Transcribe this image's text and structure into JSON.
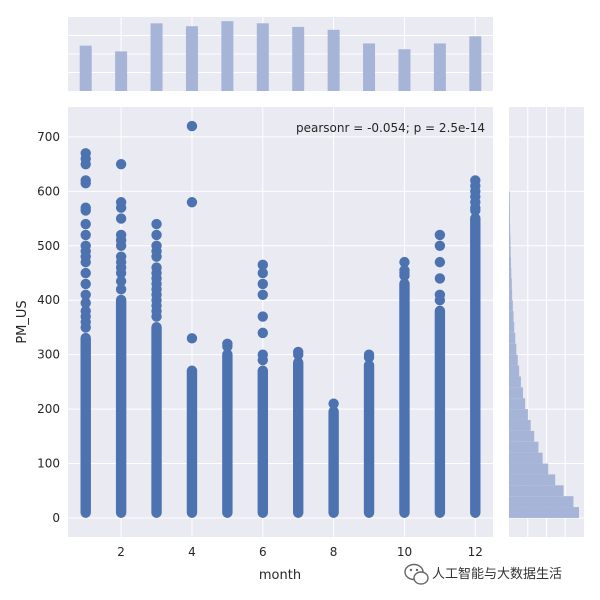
{
  "chart_data": {
    "type": "scatter",
    "xlabel": "month",
    "ylabel": "PM_US",
    "annotation": "pearsonr = -0.054; p = 2.5e-14",
    "xlim": [
      0.5,
      12.5
    ],
    "ylim": [
      -35,
      755
    ],
    "x_ticks": [
      2,
      4,
      6,
      8,
      10,
      12
    ],
    "y_ticks": [
      0,
      100,
      200,
      300,
      400,
      500,
      600,
      700
    ],
    "grid": true,
    "point_color": "#4c72b0",
    "hist_color": "#a6b5d7",
    "background_color": "#eaeaf2",
    "columns": [
      {
        "month": 1,
        "dense_max": 340,
        "outliers": [
          350,
          360,
          370,
          380,
          395,
          410,
          430,
          450,
          470,
          480,
          490,
          500,
          520,
          540,
          565,
          570,
          615,
          620,
          650,
          660,
          670
        ]
      },
      {
        "month": 2,
        "dense_max": 410,
        "outliers": [
          420,
          435,
          450,
          460,
          470,
          480,
          500,
          510,
          520,
          550,
          570,
          580,
          650
        ]
      },
      {
        "month": 3,
        "dense_max": 360,
        "outliers": [
          370,
          380,
          390,
          400,
          410,
          420,
          430,
          440,
          450,
          460,
          480,
          490,
          500,
          520,
          540
        ]
      },
      {
        "month": 4,
        "dense_max": 280,
        "outliers": [
          330,
          580,
          720
        ]
      },
      {
        "month": 5,
        "dense_max": 310,
        "outliers": [
          315,
          320
        ]
      },
      {
        "month": 6,
        "dense_max": 280,
        "outliers": [
          290,
          300,
          340,
          370,
          410,
          430,
          450,
          465
        ]
      },
      {
        "month": 7,
        "dense_max": 295,
        "outliers": [
          300,
          305
        ]
      },
      {
        "month": 8,
        "dense_max": 205,
        "outliers": [
          210
        ]
      },
      {
        "month": 9,
        "dense_max": 290,
        "outliers": [
          295,
          300
        ]
      },
      {
        "month": 10,
        "dense_max": 440,
        "outliers": [
          445,
          450,
          455,
          470
        ]
      },
      {
        "month": 11,
        "dense_max": 390,
        "outliers": [
          400,
          410,
          440,
          470,
          500,
          520
        ]
      },
      {
        "month": 12,
        "dense_max": 560,
        "outliers": [
          565,
          570,
          580,
          590,
          600,
          610,
          620
        ]
      }
    ],
    "top_histogram": {
      "x": [
        1,
        2,
        3,
        4,
        5,
        6,
        7,
        8,
        9,
        10,
        11,
        12
      ],
      "counts": [
        0.63,
        0.55,
        0.94,
        0.9,
        0.97,
        0.94,
        0.89,
        0.85,
        0.66,
        0.58,
        0.66,
        0.76
      ]
    },
    "right_histogram": {
      "bin_width": 20,
      "counts": [
        1.0,
        0.92,
        0.78,
        0.66,
        0.56,
        0.48,
        0.42,
        0.36,
        0.31,
        0.27,
        0.23,
        0.2,
        0.17,
        0.145,
        0.125,
        0.105,
        0.09,
        0.075,
        0.065,
        0.055,
        0.045,
        0.04,
        0.033,
        0.028,
        0.024,
        0.02,
        0.017,
        0.014,
        0.012,
        0.01
      ]
    }
  },
  "watermark": {
    "text": "人工智能与大数据生活",
    "icon": "wechat-icon"
  }
}
